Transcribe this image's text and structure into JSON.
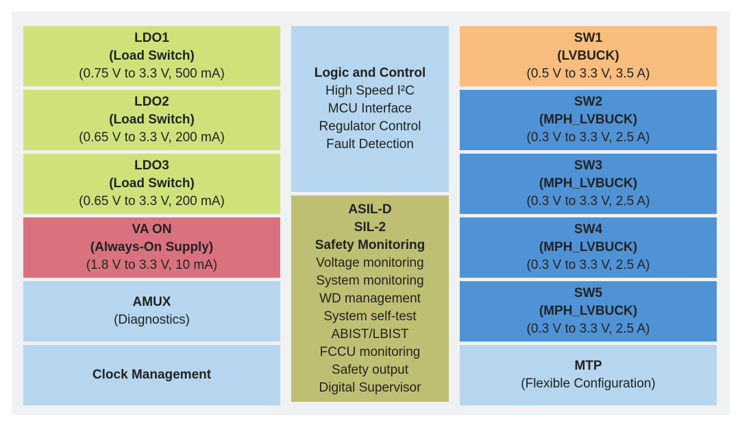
{
  "left_column": {
    "ldo1": {
      "title": "LDO1",
      "subtitle": "(Load Switch)",
      "spec": "(0.75 V to 3.3 V, 500 mA)"
    },
    "ldo2": {
      "title": "LDO2",
      "subtitle": "(Load Switch)",
      "spec": "(0.65 V to 3.3 V, 200 mA)"
    },
    "ldo3": {
      "title": "LDO3",
      "subtitle": "(Load Switch)",
      "spec": "(0.65 V to 3.3 V, 200 mA)"
    },
    "va_on": {
      "title": "VA ON",
      "subtitle": "(Always-On Supply)",
      "spec": "(1.8 V to 3.3 V, 10 mA)"
    },
    "amux": {
      "title": "AMUX",
      "subtitle": "(Diagnostics)"
    },
    "clock": {
      "title": "Clock Management"
    }
  },
  "middle_column": {
    "logic": {
      "title": "Logic and Control",
      "lines": [
        "High Speed I²C",
        "MCU Interface",
        "Regulator Control",
        "Fault Detection"
      ]
    },
    "safety": {
      "titles": [
        "ASIL-D",
        "SIL-2",
        "Safety Monitoring"
      ],
      "lines": [
        "Voltage monitoring",
        "System monitoring",
        "WD management",
        "System self-test",
        "ABIST/LBIST",
        "FCCU monitoring",
        "Safety output",
        "Digital Supervisor"
      ]
    }
  },
  "right_column": {
    "sw1": {
      "title": "SW1",
      "subtitle": "(LVBUCK)",
      "spec": "(0.5 V to 3.3 V, 3.5 A)"
    },
    "sw2": {
      "title": "SW2",
      "subtitle": "(MPH_LVBUCK)",
      "spec": "(0.3 V to 3.3 V, 2.5 A)"
    },
    "sw3": {
      "title": "SW3",
      "subtitle": "(MPH_LVBUCK)",
      "spec": "(0.3 V to 3.3 V, 2.5 A)"
    },
    "sw4": {
      "title": "SW4",
      "subtitle": "(MPH_LVBUCK)",
      "spec": "(0.3 V to 3.3 V, 2.5 A)"
    },
    "sw5": {
      "title": "SW5",
      "subtitle": "(MPH_LVBUCK)",
      "spec": "(0.3 V to 3.3 V, 2.5 A)"
    },
    "mtp": {
      "title": "MTP",
      "subtitle": "(Flexible Configuration)"
    }
  },
  "colors": {
    "ldo_green": "#cfe27a",
    "va_on_red": "#d9727e",
    "light_blue": "#b5d6ee",
    "sw1_orange": "#f9be7d",
    "sw_blue": "#4f93d6",
    "safety_olive": "#bfbf73"
  }
}
